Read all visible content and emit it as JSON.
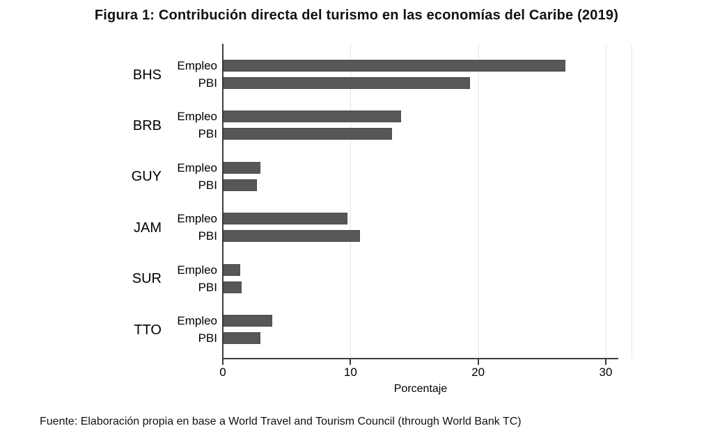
{
  "chart_data": {
    "type": "bar",
    "orientation": "horizontal",
    "title": "Figura 1: Contribución directa del turismo en las economías del Caribe (2019)",
    "xlabel": "Porcentaje",
    "x_ticks": [
      0,
      10,
      20,
      30
    ],
    "xlim": [
      0,
      31.7
    ],
    "grid": "vertical-light-gridlines-at-ticks",
    "legend_position": "none",
    "categories": [
      "BHS",
      "BRB",
      "GUY",
      "JAM",
      "SUR",
      "TTO"
    ],
    "subcategories": [
      "Empleo",
      "PBI"
    ],
    "series": [
      {
        "name": "Empleo",
        "values": [
          26.8,
          13.9,
          2.9,
          9.7,
          1.3,
          3.8
        ]
      },
      {
        "name": "PBI",
        "values": [
          19.3,
          13.2,
          2.6,
          10.7,
          1.4,
          2.9
        ]
      }
    ]
  },
  "source_note": "Fuente: Elaboración propia en base a World Travel and Tourism Council (through World Bank TC)",
  "colors": {
    "bar_fill": "#575757",
    "bar_border": "#4c4c4c",
    "axis": "#3c3c3c",
    "gridline": "#e5e5e5",
    "background": "#ffffff",
    "text": "#000000"
  }
}
